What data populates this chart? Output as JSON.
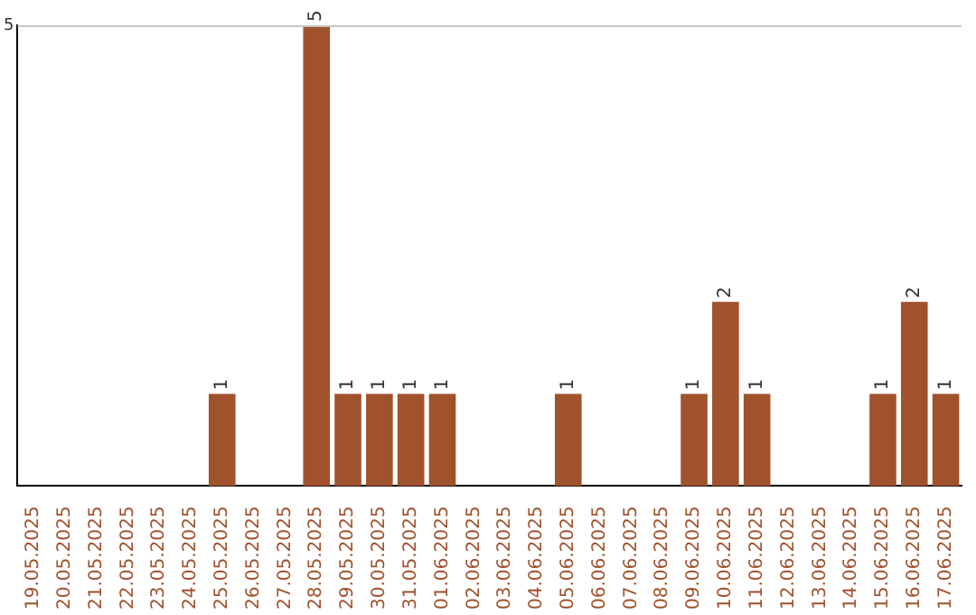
{
  "chart_data": {
    "type": "bar",
    "categories": [
      "19.05.2025",
      "20.05.2025",
      "21.05.2025",
      "22.05.2025",
      "23.05.2025",
      "24.05.2025",
      "25.05.2025",
      "26.05.2025",
      "27.05.2025",
      "28.05.2025",
      "29.05.2025",
      "30.05.2025",
      "31.05.2025",
      "01.06.2025",
      "02.06.2025",
      "03.06.2025",
      "04.06.2025",
      "05.06.2025",
      "06.06.2025",
      "07.06.2025",
      "08.06.2025",
      "09.06.2025",
      "10.06.2025",
      "11.06.2025",
      "12.06.2025",
      "13.06.2025",
      "14.06.2025",
      "15.06.2025",
      "16.06.2025",
      "17.06.2025"
    ],
    "values": [
      0,
      0,
      0,
      0,
      0,
      0,
      1,
      0,
      0,
      5,
      1,
      1,
      1,
      1,
      0,
      0,
      0,
      1,
      0,
      0,
      0,
      1,
      2,
      1,
      0,
      0,
      0,
      1,
      2,
      1
    ],
    "value_labels": [
      null,
      null,
      null,
      null,
      null,
      null,
      "1",
      null,
      null,
      "5",
      "1",
      "1",
      "1",
      "1",
      null,
      null,
      null,
      "1",
      null,
      null,
      null,
      "1",
      "2",
      "1",
      null,
      null,
      null,
      "1",
      "2",
      "1"
    ],
    "color": "#a0522d",
    "ylim": [
      0,
      5
    ],
    "yticks": [
      5
    ],
    "legend": false
  }
}
